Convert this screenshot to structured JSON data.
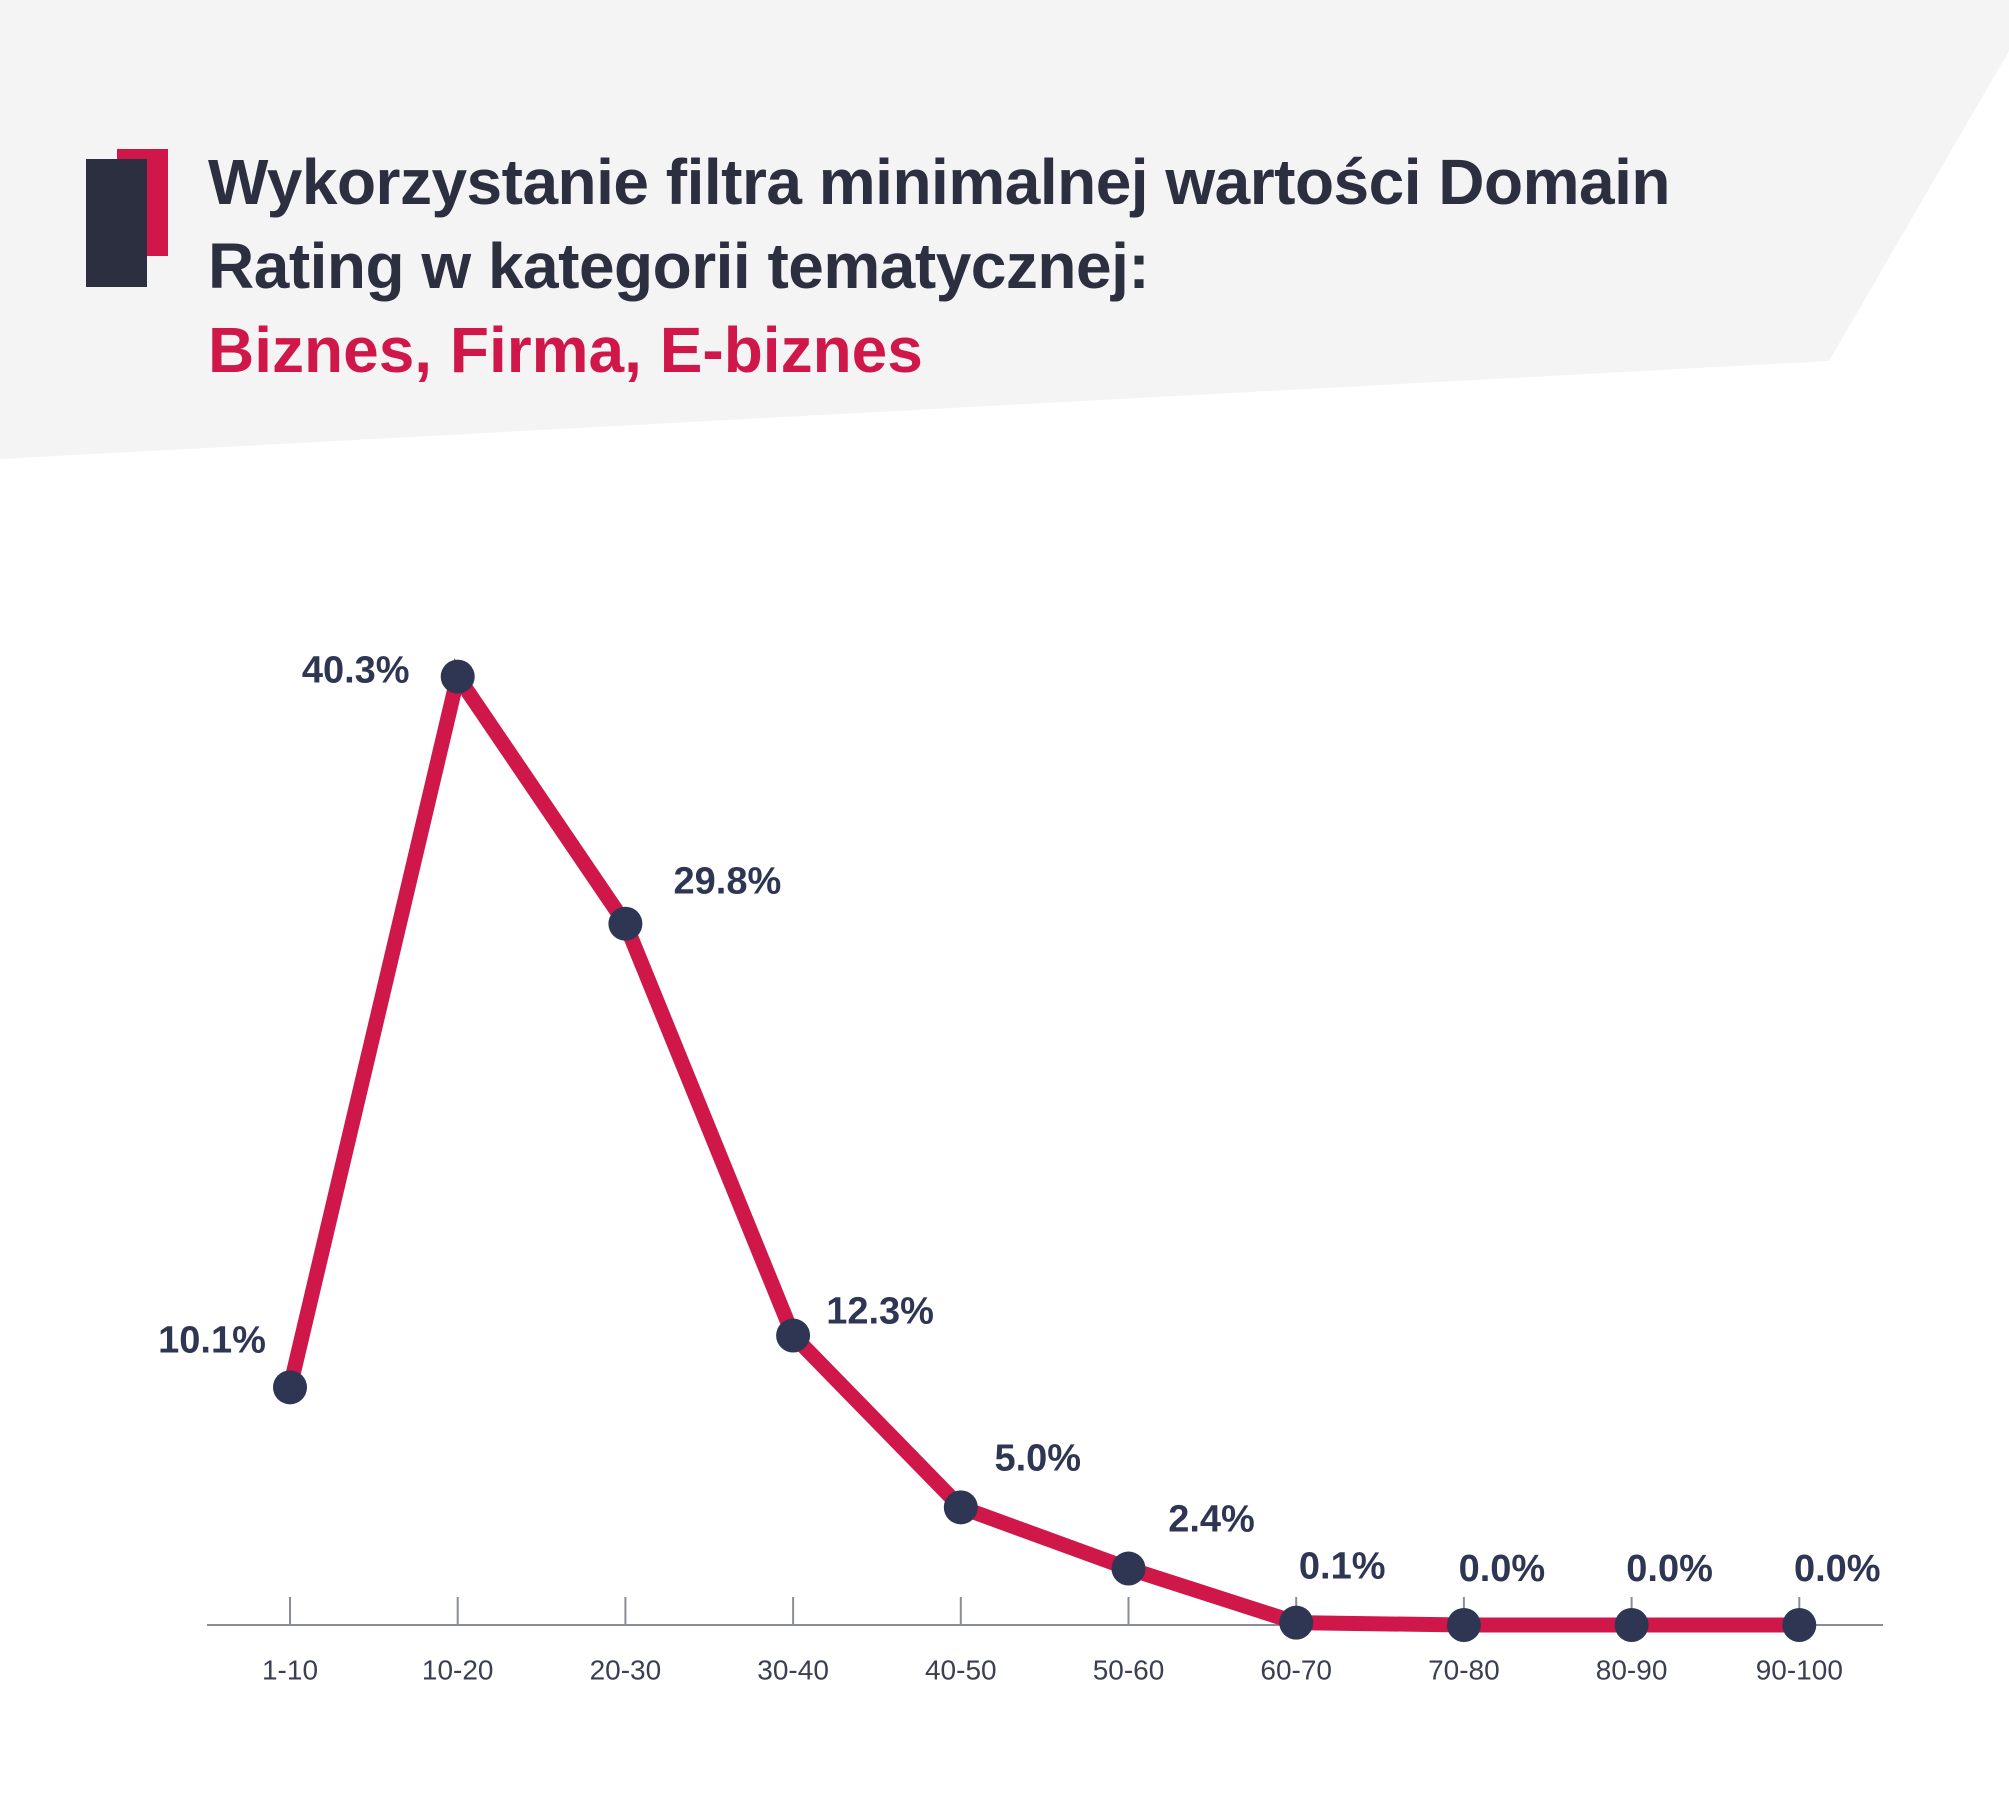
{
  "chart_data": {
    "type": "line",
    "title": "Wykorzystanie filtra minimalnej wartości Domain Rating w kategorii tematycznej:",
    "subtitle": "Biznes, Firma, E-biznes",
    "categories": [
      "1-10",
      "10-20",
      "20-30",
      "30-40",
      "40-50",
      "50-60",
      "60-70",
      "70-80",
      "80-90",
      "90-100"
    ],
    "values": [
      10.1,
      40.3,
      29.8,
      12.3,
      5.0,
      2.4,
      0.1,
      0.0,
      0.0,
      0.0
    ],
    "value_labels": [
      "10.1%",
      "40.3%",
      "29.8%",
      "12.3%",
      "5.0%",
      "2.4%",
      "0.1%",
      "0.0%",
      "0.0%",
      "0.0%"
    ],
    "color": "#d0174a",
    "marker_color": "#2f3654",
    "ylim": [
      0,
      45
    ]
  }
}
